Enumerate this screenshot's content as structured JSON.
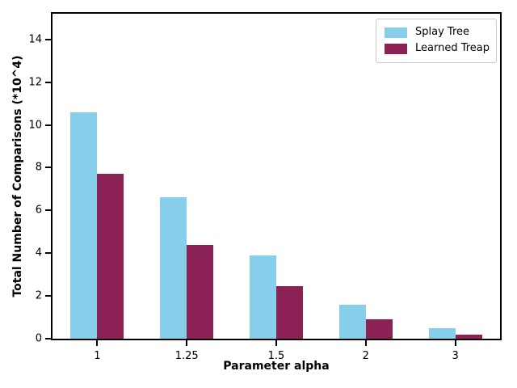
{
  "figure": {
    "background": "#ffffff"
  },
  "chart_data": {
    "type": "bar",
    "title": "",
    "xlabel": "Parameter alpha",
    "ylabel": "Total Number of Comparisons (*10^4)",
    "categories": [
      "1",
      "1.25",
      "1.5",
      "2",
      "3"
    ],
    "series": [
      {
        "name": "Splay Tree",
        "color": "#87CEEB",
        "values": [
          10.6,
          6.6,
          3.9,
          1.6,
          0.5
        ]
      },
      {
        "name": "Learned Treap",
        "color": "#8C2155",
        "values": [
          7.7,
          4.4,
          2.45,
          0.9,
          0.2
        ]
      }
    ],
    "ylim": [
      0,
      15.2
    ],
    "yticks": [
      0,
      2,
      4,
      6,
      8,
      10,
      12,
      14
    ],
    "grid": false,
    "legend_position": "upper right",
    "axis_color": "#000000"
  }
}
